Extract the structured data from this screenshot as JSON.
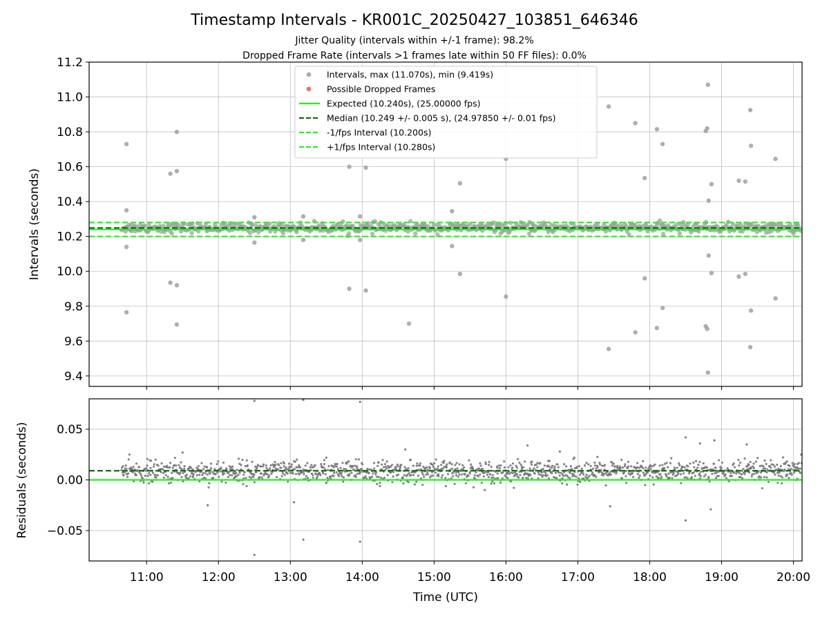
{
  "chart_data": [
    {
      "type": "scatter",
      "panel": "intervals",
      "title": "Timestamp Intervals - KR001C_20250427_103851_646346",
      "subtitle_lines": [
        "Jitter Quality (intervals within +/-1 frame): 98.2%",
        "Dropped Frame Rate (intervals >1 frames late within 50 FF files): 0.0%"
      ],
      "xlabel": "",
      "ylabel": "Intervals (seconds)",
      "xlim": [
        10.2,
        20.12
      ],
      "ylim": [
        9.34,
        11.2
      ],
      "yticks": [
        9.4,
        9.6,
        9.8,
        10.0,
        10.2,
        10.4,
        10.6,
        10.8,
        11.0,
        11.2
      ],
      "ytick_labels": [
        "9.4",
        "9.6",
        "9.8",
        "10.0",
        "10.2",
        "10.4",
        "10.6",
        "10.8",
        "11.0",
        "11.2"
      ],
      "xticks": [
        11,
        12,
        13,
        14,
        15,
        16,
        17,
        18,
        19,
        20
      ],
      "grid": true,
      "legend_position": "upper-center",
      "legend": [
        {
          "label": "Intervals, max (11.070s), min (9.419s)",
          "kind": "marker",
          "color": "#999999"
        },
        {
          "label": "Possible Dropped Frames",
          "kind": "marker",
          "color": "#ee5555"
        },
        {
          "label": "Expected (10.240s), (25.00000 fps)",
          "kind": "solid",
          "color": "#22ee22"
        },
        {
          "label": "Median (10.249 +/- 0.005 s), (24.97850 +/- 0.01 fps)",
          "kind": "dashed",
          "color": "#116611"
        },
        {
          "label": "-1/fps Interval (10.200s)",
          "kind": "dashed",
          "color": "#22ee22"
        },
        {
          "label": "+1/fps Interval (10.280s)",
          "kind": "dashed",
          "color": "#22ee22"
        }
      ],
      "hlines": [
        {
          "y": 10.24,
          "style": "solid",
          "color": "#22ee22"
        },
        {
          "y": 10.249,
          "style": "dashed",
          "color": "#116611"
        },
        {
          "y": 10.2,
          "style": "dashed",
          "color": "#22ee22"
        },
        {
          "y": 10.28,
          "style": "dashed",
          "color": "#22ee22"
        }
      ],
      "band": {
        "x_start": 10.65,
        "x_end": 20.12,
        "y_center": 10.25,
        "y_spread": 0.03,
        "count": 700
      },
      "outliers": [
        {
          "x": 10.72,
          "y": 10.73
        },
        {
          "x": 10.72,
          "y": 10.35
        },
        {
          "x": 10.72,
          "y": 10.14
        },
        {
          "x": 10.72,
          "y": 9.765
        },
        {
          "x": 11.33,
          "y": 10.56
        },
        {
          "x": 11.33,
          "y": 9.935
        },
        {
          "x": 11.42,
          "y": 10.8
        },
        {
          "x": 11.42,
          "y": 10.575
        },
        {
          "x": 11.42,
          "y": 9.92
        },
        {
          "x": 11.42,
          "y": 9.695
        },
        {
          "x": 12.5,
          "y": 10.31
        },
        {
          "x": 12.5,
          "y": 10.165
        },
        {
          "x": 13.18,
          "y": 10.315
        },
        {
          "x": 13.18,
          "y": 10.18
        },
        {
          "x": 13.82,
          "y": 10.6
        },
        {
          "x": 13.82,
          "y": 9.9
        },
        {
          "x": 13.97,
          "y": 10.315
        },
        {
          "x": 13.97,
          "y": 10.18
        },
        {
          "x": 14.05,
          "y": 10.595
        },
        {
          "x": 14.05,
          "y": 9.89
        },
        {
          "x": 14.65,
          "y": 9.7
        },
        {
          "x": 15.25,
          "y": 10.345
        },
        {
          "x": 15.25,
          "y": 10.145
        },
        {
          "x": 15.36,
          "y": 10.505
        },
        {
          "x": 15.36,
          "y": 9.985
        },
        {
          "x": 16.0,
          "y": 10.645
        },
        {
          "x": 16.0,
          "y": 9.855
        },
        {
          "x": 17.43,
          "y": 10.945
        },
        {
          "x": 17.43,
          "y": 9.555
        },
        {
          "x": 17.8,
          "y": 10.85
        },
        {
          "x": 17.8,
          "y": 9.65
        },
        {
          "x": 17.93,
          "y": 10.535
        },
        {
          "x": 17.93,
          "y": 9.96
        },
        {
          "x": 18.1,
          "y": 10.815
        },
        {
          "x": 18.1,
          "y": 9.675
        },
        {
          "x": 18.18,
          "y": 10.73
        },
        {
          "x": 18.18,
          "y": 9.79
        },
        {
          "x": 18.78,
          "y": 10.805
        },
        {
          "x": 18.8,
          "y": 10.82
        },
        {
          "x": 18.78,
          "y": 9.685
        },
        {
          "x": 18.8,
          "y": 9.67
        },
        {
          "x": 18.81,
          "y": 11.07
        },
        {
          "x": 18.81,
          "y": 9.419
        },
        {
          "x": 18.82,
          "y": 10.405
        },
        {
          "x": 18.82,
          "y": 10.09
        },
        {
          "x": 18.86,
          "y": 10.5
        },
        {
          "x": 18.86,
          "y": 9.99
        },
        {
          "x": 19.24,
          "y": 10.52
        },
        {
          "x": 19.24,
          "y": 9.97
        },
        {
          "x": 19.33,
          "y": 10.515
        },
        {
          "x": 19.33,
          "y": 9.985
        },
        {
          "x": 19.4,
          "y": 10.925
        },
        {
          "x": 19.41,
          "y": 10.72
        },
        {
          "x": 19.4,
          "y": 9.565
        },
        {
          "x": 19.41,
          "y": 9.775
        },
        {
          "x": 19.75,
          "y": 10.645
        },
        {
          "x": 19.75,
          "y": 9.845
        }
      ]
    },
    {
      "type": "scatter",
      "panel": "residuals",
      "xlabel": "Time (UTC)",
      "ylabel": "Residuals (seconds)",
      "xlim": [
        10.2,
        20.12
      ],
      "ylim": [
        -0.08,
        0.08
      ],
      "yticks": [
        -0.05,
        0.0,
        0.05
      ],
      "ytick_labels": [
        "−0.05",
        "0.00",
        "0.05"
      ],
      "xticks": [
        11,
        12,
        13,
        14,
        15,
        16,
        17,
        18,
        19,
        20
      ],
      "xtick_labels": [
        "11:00",
        "12:00",
        "13:00",
        "14:00",
        "15:00",
        "16:00",
        "17:00",
        "18:00",
        "19:00",
        "20:00"
      ],
      "grid": true,
      "hlines": [
        {
          "y": 0.0,
          "style": "solid",
          "color": "#22ee22"
        },
        {
          "y": 0.009,
          "style": "dashed",
          "color": "#116611"
        }
      ],
      "band": {
        "x_start": 10.65,
        "x_end": 20.12,
        "y_center": 0.008,
        "y_spread": 0.012,
        "count": 1400
      },
      "outliers": [
        {
          "x": 12.5,
          "y": 0.078
        },
        {
          "x": 12.5,
          "y": -0.074
        },
        {
          "x": 13.18,
          "y": 0.079
        },
        {
          "x": 13.18,
          "y": -0.059
        },
        {
          "x": 13.97,
          "y": 0.077
        },
        {
          "x": 13.97,
          "y": -0.061
        },
        {
          "x": 11.85,
          "y": -0.025
        },
        {
          "x": 13.05,
          "y": -0.022
        },
        {
          "x": 14.6,
          "y": 0.03
        },
        {
          "x": 16.3,
          "y": 0.034
        },
        {
          "x": 17.45,
          "y": -0.026
        },
        {
          "x": 18.5,
          "y": 0.042
        },
        {
          "x": 18.5,
          "y": -0.04
        },
        {
          "x": 18.85,
          "y": -0.029
        },
        {
          "x": 19.35,
          "y": 0.035
        },
        {
          "x": 18.7,
          "y": 0.036
        },
        {
          "x": 18.9,
          "y": 0.039
        },
        {
          "x": 13.5,
          "y": 0.022
        },
        {
          "x": 16.75,
          "y": 0.028
        },
        {
          "x": 11.5,
          "y": 0.027
        }
      ]
    }
  ]
}
